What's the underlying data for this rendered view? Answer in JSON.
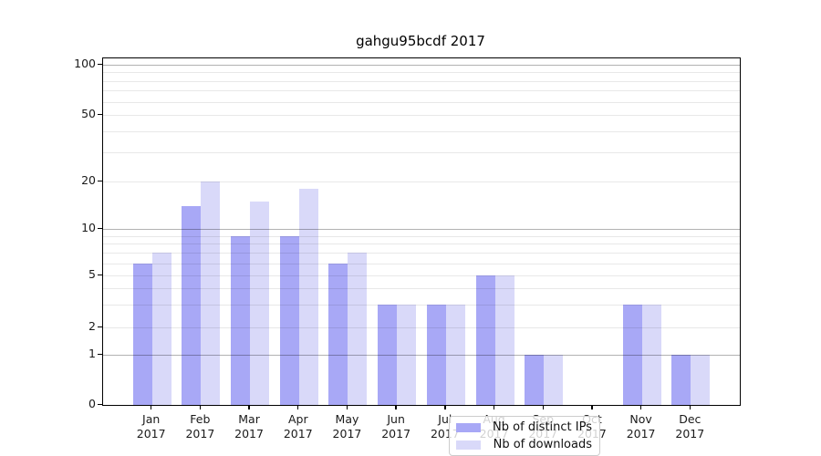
{
  "chart_data": {
    "type": "bar",
    "title": "gahgu95bcdf 2017",
    "categories": [
      "Jan 2017",
      "Feb 2017",
      "Mar 2017",
      "Apr 2017",
      "May 2017",
      "Jun 2017",
      "Jul 2017",
      "Aug 2017",
      "Sep 2017",
      "Oct 2017",
      "Nov 2017",
      "Dec 2017"
    ],
    "series": [
      {
        "name": "Nb of distinct IPs",
        "color": "#a8a8f6",
        "values": [
          6,
          14,
          9,
          9,
          6,
          3,
          3,
          5,
          1,
          0,
          3,
          1
        ]
      },
      {
        "name": "Nb of downloads",
        "color": "#d9d9f9",
        "values": [
          7,
          20,
          15,
          18,
          7,
          3,
          3,
          5,
          1,
          0,
          3,
          1
        ]
      }
    ],
    "xlabel": "",
    "ylabel": "",
    "yscale": "symlog",
    "yticks": [
      0,
      1,
      2,
      5,
      10,
      20,
      50,
      100
    ],
    "yminor_gridlines": [
      2,
      3,
      4,
      5,
      6,
      7,
      8,
      9,
      20,
      30,
      40,
      50,
      60,
      70,
      80,
      90
    ],
    "ymajor_gridlines": [
      1,
      10,
      100
    ],
    "ylim": [
      0,
      110
    ],
    "grid": "horizontal",
    "legend_position": "lower-center"
  }
}
